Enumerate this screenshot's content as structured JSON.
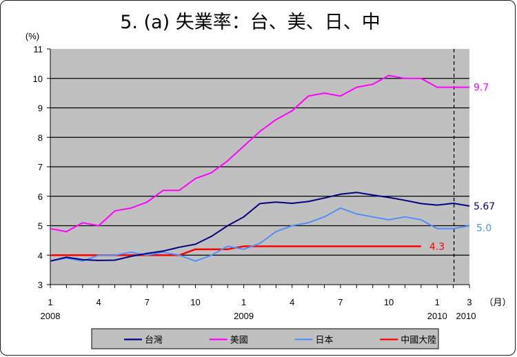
{
  "chart_data": {
    "type": "line",
    "title": "5. (a)  失業率：台、美、日、中",
    "ylabel": "(%)",
    "xlabel_unit": "（月）",
    "ylim": [
      3,
      11
    ],
    "yticks": [
      3,
      4,
      5,
      6,
      7,
      8,
      9,
      10,
      11
    ],
    "grid": true,
    "background": "#c0c0c0",
    "x_ticks": [
      {
        "month": 1,
        "label": "1",
        "year": "2008"
      },
      {
        "month": 4,
        "label": "4",
        "year": ""
      },
      {
        "month": 7,
        "label": "7",
        "year": ""
      },
      {
        "month": 10,
        "label": "10",
        "year": ""
      },
      {
        "month": 13,
        "label": "1",
        "year": "2009"
      },
      {
        "month": 16,
        "label": "4",
        "year": ""
      },
      {
        "month": 19,
        "label": "7",
        "year": ""
      },
      {
        "month": 22,
        "label": "10",
        "year": ""
      },
      {
        "month": 25,
        "label": "1",
        "year": "2010"
      },
      {
        "month": 27,
        "label": "3",
        "year": "2010"
      }
    ],
    "divider_month": 26,
    "legend_position": "bottom",
    "series": [
      {
        "name": "台灣",
        "color": "#000080",
        "end_label": "5.67",
        "values": [
          3.8,
          3.93,
          3.85,
          3.82,
          3.83,
          3.96,
          4.06,
          4.14,
          4.27,
          4.37,
          4.64,
          5.0,
          5.3,
          5.75,
          5.8,
          5.76,
          5.82,
          5.94,
          6.07,
          6.13,
          6.04,
          5.96,
          5.86,
          5.75,
          5.7,
          5.76,
          5.67
        ]
      },
      {
        "name": "美國",
        "color": "#ff00ff",
        "end_label": "9.7",
        "values": [
          4.9,
          4.8,
          5.1,
          5.0,
          5.5,
          5.6,
          5.8,
          6.2,
          6.2,
          6.6,
          6.8,
          7.2,
          7.7,
          8.2,
          8.6,
          8.9,
          9.4,
          9.5,
          9.4,
          9.7,
          9.8,
          10.1,
          10.0,
          10.0,
          9.7,
          9.7,
          9.7
        ]
      },
      {
        "name": "日本",
        "color": "#4f8ff7",
        "end_label": "5.0",
        "values": [
          3.8,
          3.9,
          3.8,
          4.0,
          4.0,
          4.1,
          4.0,
          4.1,
          4.0,
          3.8,
          4.0,
          4.3,
          4.2,
          4.4,
          4.8,
          5.0,
          5.1,
          5.3,
          5.6,
          5.4,
          5.3,
          5.2,
          5.3,
          5.2,
          4.9,
          4.9,
          5.0
        ]
      },
      {
        "name": "中國大陸",
        "color": "#ff0000",
        "end_label": "4.3",
        "values": [
          4.0,
          4.0,
          4.0,
          4.0,
          4.0,
          4.0,
          4.0,
          4.0,
          4.0,
          4.2,
          4.2,
          4.2,
          4.3,
          4.3,
          4.3,
          4.3,
          4.3,
          4.3,
          4.3,
          4.3,
          4.3,
          4.3,
          4.3,
          4.3
        ]
      }
    ]
  }
}
